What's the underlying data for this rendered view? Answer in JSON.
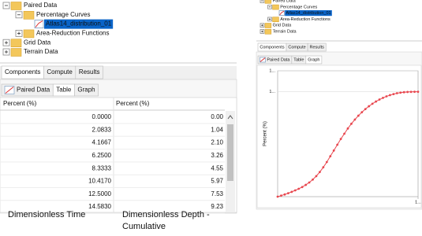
{
  "left": {
    "tree": [
      "Paired Data",
      "Percentage Curves",
      "Atlas14_distribution_01",
      "Area-Reduction Functions",
      "Grid Data",
      "Terrain Data"
    ],
    "tabs": [
      "Components",
      "Compute",
      "Results"
    ],
    "subtabs": [
      "Paired Data",
      "Table",
      "Graph"
    ],
    "table": {
      "header": [
        "Percent (%)",
        "Percent (%)"
      ],
      "rows": [
        [
          "0.0000",
          "0.00"
        ],
        [
          "2.0833",
          "1.04"
        ],
        [
          "4.1667",
          "2.10"
        ],
        [
          "6.2500",
          "3.26"
        ],
        [
          "8.3333",
          "4.55"
        ],
        [
          "10.4170",
          "5.97"
        ],
        [
          "12.5000",
          "7.53"
        ],
        [
          "14.5830",
          "9.23"
        ]
      ]
    }
  },
  "right": {
    "tree": [
      "Paired Data",
      "Percentage Curves",
      "Atlas14_distribution_01",
      "Area-Reduction Functions",
      "Grid Data",
      "Terrain Data"
    ],
    "tabs": [
      "Components",
      "Compute",
      "Results"
    ],
    "subtabs": [
      "Paired Data",
      "Table",
      "Graph"
    ],
    "graph": {
      "type": "line",
      "y_label": "Percent (%)",
      "color": "#e8474f",
      "x": [
        0,
        2.5,
        5,
        7.5,
        10,
        12.5,
        15,
        17.5,
        20,
        22.5,
        25,
        27.5,
        30,
        32.5,
        35,
        37.5,
        40,
        42.5,
        45,
        47.5,
        50,
        52.5,
        55,
        57.5,
        60,
        62.5,
        65,
        67.5,
        70,
        72.5,
        75,
        77.5,
        80,
        82.5,
        85,
        87.5,
        90,
        92.5,
        95,
        97.5,
        100
      ],
      "y": [
        0,
        1,
        2.1,
        3.3,
        4.6,
        6,
        7.5,
        9.2,
        11.2,
        13.5,
        16.3,
        19.6,
        23.5,
        28,
        33,
        38.5,
        44,
        49.5,
        55,
        60,
        65,
        69.5,
        73.5,
        77.2,
        80.5,
        83.5,
        86.2,
        88.6,
        90.7,
        92.6,
        94.2,
        95.6,
        96.8,
        97.8,
        98.6,
        99.2,
        99.6,
        99.8,
        99.9,
        100,
        100
      ],
      "xlim": [
        0,
        100
      ],
      "ylim": [
        0,
        120
      ],
      "xticks": [
        {
          "value": 100,
          "label": "1..."
        }
      ],
      "yticks": [
        {
          "value": 100,
          "label": "1..."
        },
        {
          "value": 120,
          "label": "1..."
        }
      ]
    }
  },
  "captions": [
    "Dimensionless Time",
    "Dimensionless Depth - Cumulative"
  ]
}
